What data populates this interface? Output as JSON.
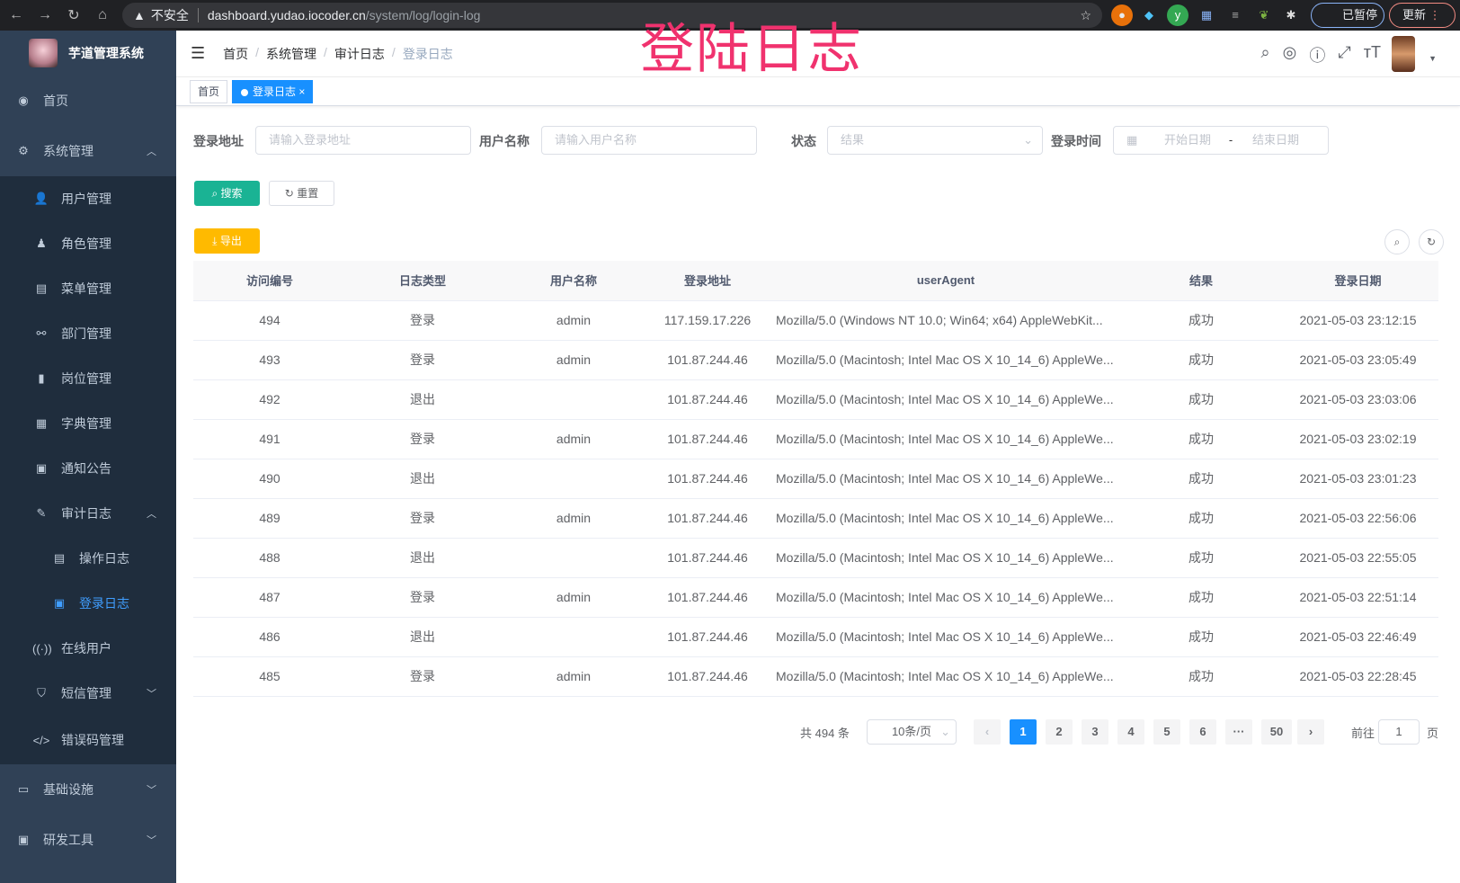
{
  "browser": {
    "security": "不安全",
    "host": "dashboard.yudao.iocoder.cn",
    "path": "/system/log/login-log",
    "paused": "已暂停",
    "update": "更新"
  },
  "overlay_title": "登陆日志",
  "sidebar": {
    "title": "芋道管理系统",
    "items": [
      {
        "label": "首页",
        "icon": "dashboard-icon"
      },
      {
        "label": "系统管理",
        "icon": "gear-icon"
      },
      {
        "label": "用户管理",
        "icon": "user-icon"
      },
      {
        "label": "角色管理",
        "icon": "peoples-icon"
      },
      {
        "label": "菜单管理",
        "icon": "tree-table-icon"
      },
      {
        "label": "部门管理",
        "icon": "tree-icon"
      },
      {
        "label": "岗位管理",
        "icon": "post-icon"
      },
      {
        "label": "字典管理",
        "icon": "dict-icon"
      },
      {
        "label": "通知公告",
        "icon": "message-icon"
      },
      {
        "label": "审计日志",
        "icon": "log-icon"
      },
      {
        "label": "操作日志",
        "icon": "form-icon"
      },
      {
        "label": "登录日志",
        "icon": "logininfor-icon"
      },
      {
        "label": "在线用户",
        "icon": "online-icon"
      },
      {
        "label": "短信管理",
        "icon": "validcode-icon"
      },
      {
        "label": "错误码管理",
        "icon": "code-icon"
      },
      {
        "label": "基础设施",
        "icon": "monitor-icon"
      },
      {
        "label": "研发工具",
        "icon": "tool-icon"
      }
    ]
  },
  "breadcrumb": [
    "首页",
    "系统管理",
    "审计日志",
    "登录日志"
  ],
  "tags": {
    "home": "首页",
    "active": "登录日志",
    "close": "×"
  },
  "filters": {
    "ip_label": "登录地址",
    "ip_placeholder": "请输入登录地址",
    "user_label": "用户名称",
    "user_placeholder": "请输入用户名称",
    "status_label": "状态",
    "status_placeholder": "结果",
    "time_label": "登录时间",
    "start_placeholder": "开始日期",
    "date_sep": "-",
    "end_placeholder": "结束日期"
  },
  "buttons": {
    "search": "搜索",
    "reset": "重置",
    "export": "导出"
  },
  "table": {
    "columns": [
      "访问编号",
      "日志类型",
      "用户名称",
      "登录地址",
      "userAgent",
      "结果",
      "登录日期"
    ],
    "rows": [
      [
        "494",
        "登录",
        "admin",
        "117.159.17.226",
        "Mozilla/5.0 (Windows NT 10.0; Win64; x64) AppleWebKit...",
        "成功",
        "2021-05-03 23:12:15"
      ],
      [
        "493",
        "登录",
        "admin",
        "101.87.244.46",
        "Mozilla/5.0 (Macintosh; Intel Mac OS X 10_14_6) AppleWe...",
        "成功",
        "2021-05-03 23:05:49"
      ],
      [
        "492",
        "退出",
        "",
        "101.87.244.46",
        "Mozilla/5.0 (Macintosh; Intel Mac OS X 10_14_6) AppleWe...",
        "成功",
        "2021-05-03 23:03:06"
      ],
      [
        "491",
        "登录",
        "admin",
        "101.87.244.46",
        "Mozilla/5.0 (Macintosh; Intel Mac OS X 10_14_6) AppleWe...",
        "成功",
        "2021-05-03 23:02:19"
      ],
      [
        "490",
        "退出",
        "",
        "101.87.244.46",
        "Mozilla/5.0 (Macintosh; Intel Mac OS X 10_14_6) AppleWe...",
        "成功",
        "2021-05-03 23:01:23"
      ],
      [
        "489",
        "登录",
        "admin",
        "101.87.244.46",
        "Mozilla/5.0 (Macintosh; Intel Mac OS X 10_14_6) AppleWe...",
        "成功",
        "2021-05-03 22:56:06"
      ],
      [
        "488",
        "退出",
        "",
        "101.87.244.46",
        "Mozilla/5.0 (Macintosh; Intel Mac OS X 10_14_6) AppleWe...",
        "成功",
        "2021-05-03 22:55:05"
      ],
      [
        "487",
        "登录",
        "admin",
        "101.87.244.46",
        "Mozilla/5.0 (Macintosh; Intel Mac OS X 10_14_6) AppleWe...",
        "成功",
        "2021-05-03 22:51:14"
      ],
      [
        "486",
        "退出",
        "",
        "101.87.244.46",
        "Mozilla/5.0 (Macintosh; Intel Mac OS X 10_14_6) AppleWe...",
        "成功",
        "2021-05-03 22:46:49"
      ],
      [
        "485",
        "登录",
        "admin",
        "101.87.244.46",
        "Mozilla/5.0 (Macintosh; Intel Mac OS X 10_14_6) AppleWe...",
        "成功",
        "2021-05-03 22:28:45"
      ]
    ]
  },
  "pagination": {
    "total": "共 494 条",
    "page_size": "10条/页",
    "pages": [
      "1",
      "2",
      "3",
      "4",
      "5",
      "6",
      "···",
      "50"
    ],
    "current": "1",
    "goto_label": "前往",
    "goto_value": "1",
    "goto_suffix": "页"
  },
  "colors": {
    "sidebar": "#304156",
    "submenu": "#1f2d3d",
    "primary": "#1890ff",
    "search": "#13ce66",
    "export": "#ffba00",
    "overlay": "#f0326e"
  }
}
